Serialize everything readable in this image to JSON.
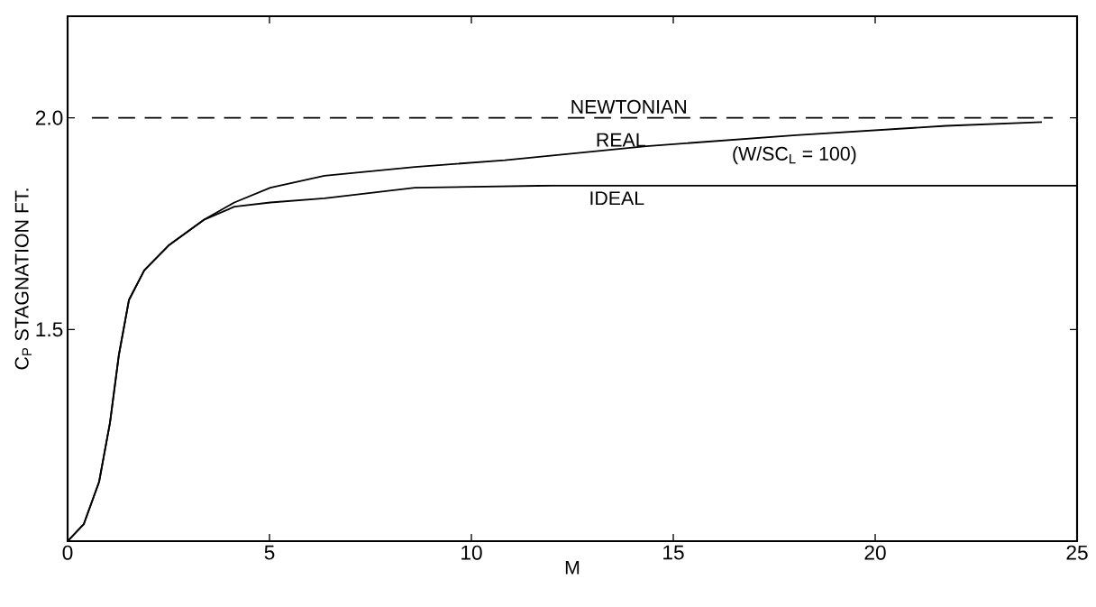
{
  "chart_data": {
    "type": "line",
    "xlabel": "M",
    "ylabel": "C$_{P}$  STAGNATION  FT.",
    "xlim": [
      0,
      25
    ],
    "ylim": [
      1.0,
      2.24
    ],
    "xticks": [
      0,
      5,
      10,
      15,
      20,
      25
    ],
    "yticks": [
      1.5,
      {
        "value": 2.0,
        "label": "2.0"
      }
    ],
    "grid": false,
    "legend": false,
    "marker": "none",
    "line_style": "solid",
    "series": [
      {
        "name": "REAL",
        "color": "#000000",
        "x": [
          0,
          0.4,
          0.78,
          1.05,
          1.27,
          1.52,
          1.9,
          2.52,
          3.39,
          4.13,
          5.02,
          6.36,
          8.6,
          10.83,
          14.33,
          18.04,
          21.76,
          24.13
        ],
        "values": [
          1.0,
          1.04,
          1.14,
          1.28,
          1.44,
          1.57,
          1.64,
          1.7,
          1.76,
          1.8,
          1.835,
          1.863,
          1.884,
          1.9,
          1.933,
          1.959,
          1.981,
          1.99
        ]
      },
      {
        "name": "IDEAL",
        "color": "#000000",
        "x": [
          0,
          0.4,
          0.78,
          1.05,
          1.27,
          1.52,
          1.9,
          2.52,
          3.39,
          4.13,
          5.02,
          6.36,
          8.6,
          12,
          16,
          20,
          25
        ],
        "values": [
          1.0,
          1.04,
          1.14,
          1.28,
          1.44,
          1.57,
          1.64,
          1.7,
          1.76,
          1.79,
          1.8,
          1.81,
          1.835,
          1.84,
          1.84,
          1.84,
          1.84
        ]
      }
    ],
    "ref_lines": [
      {
        "axis": "y",
        "value": 2.0,
        "label": "NEWTONIAN",
        "line_style": "dashed",
        "color": "#000000"
      }
    ],
    "annotations": [
      "(W/SC$_{L}$ = 100)"
    ]
  }
}
